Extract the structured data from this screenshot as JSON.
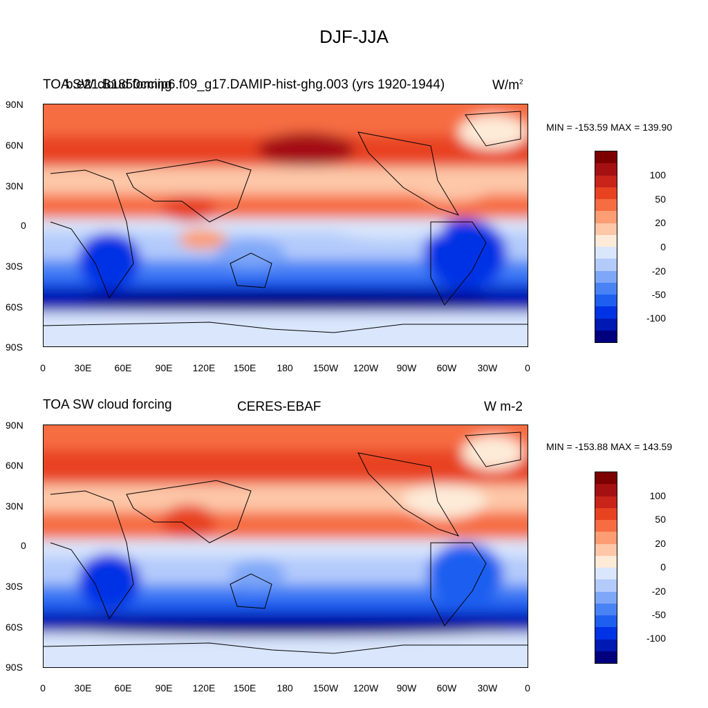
{
  "title": "DJF-JJA",
  "colors": [
    "#00007f",
    "#0019b2",
    "#0033e5",
    "#1f5ff0",
    "#4982f5",
    "#7fa7f8",
    "#b3cbfb",
    "#d9e6fc",
    "#fdebd8",
    "#fdc7a8",
    "#fc9d73",
    "#f66d42",
    "#e84321",
    "#c8241a",
    "#a51113",
    "#7d0000"
  ],
  "lat_labels": [
    "90N",
    "60N",
    "30N",
    "0",
    "30S",
    "60S",
    "90S"
  ],
  "lon_labels": [
    "0",
    "30E",
    "60E",
    "90E",
    "120E",
    "150E",
    "180",
    "150W",
    "120W",
    "90W",
    "60W",
    "30W",
    "0"
  ],
  "colorbar_labels": [
    "100",
    "50",
    "20",
    "0",
    "-20",
    "-50",
    "-100"
  ],
  "panels": [
    {
      "left_title": "TOA SW cloud forcing",
      "center_title": "b.e21.B1850cmip6.f09_g17.DAMIP-hist-ghg.003 (yrs 1920-1944)",
      "units_base": "W/m",
      "units_sup": "2",
      "minmax": "MIN = -153.59 MAX = 139.90"
    },
    {
      "left_title": "TOA SW cloud forcing",
      "center_title": "CERES-EBAF",
      "units": "W m-2",
      "minmax": "MIN = -153.88 MAX = 143.59"
    }
  ]
}
